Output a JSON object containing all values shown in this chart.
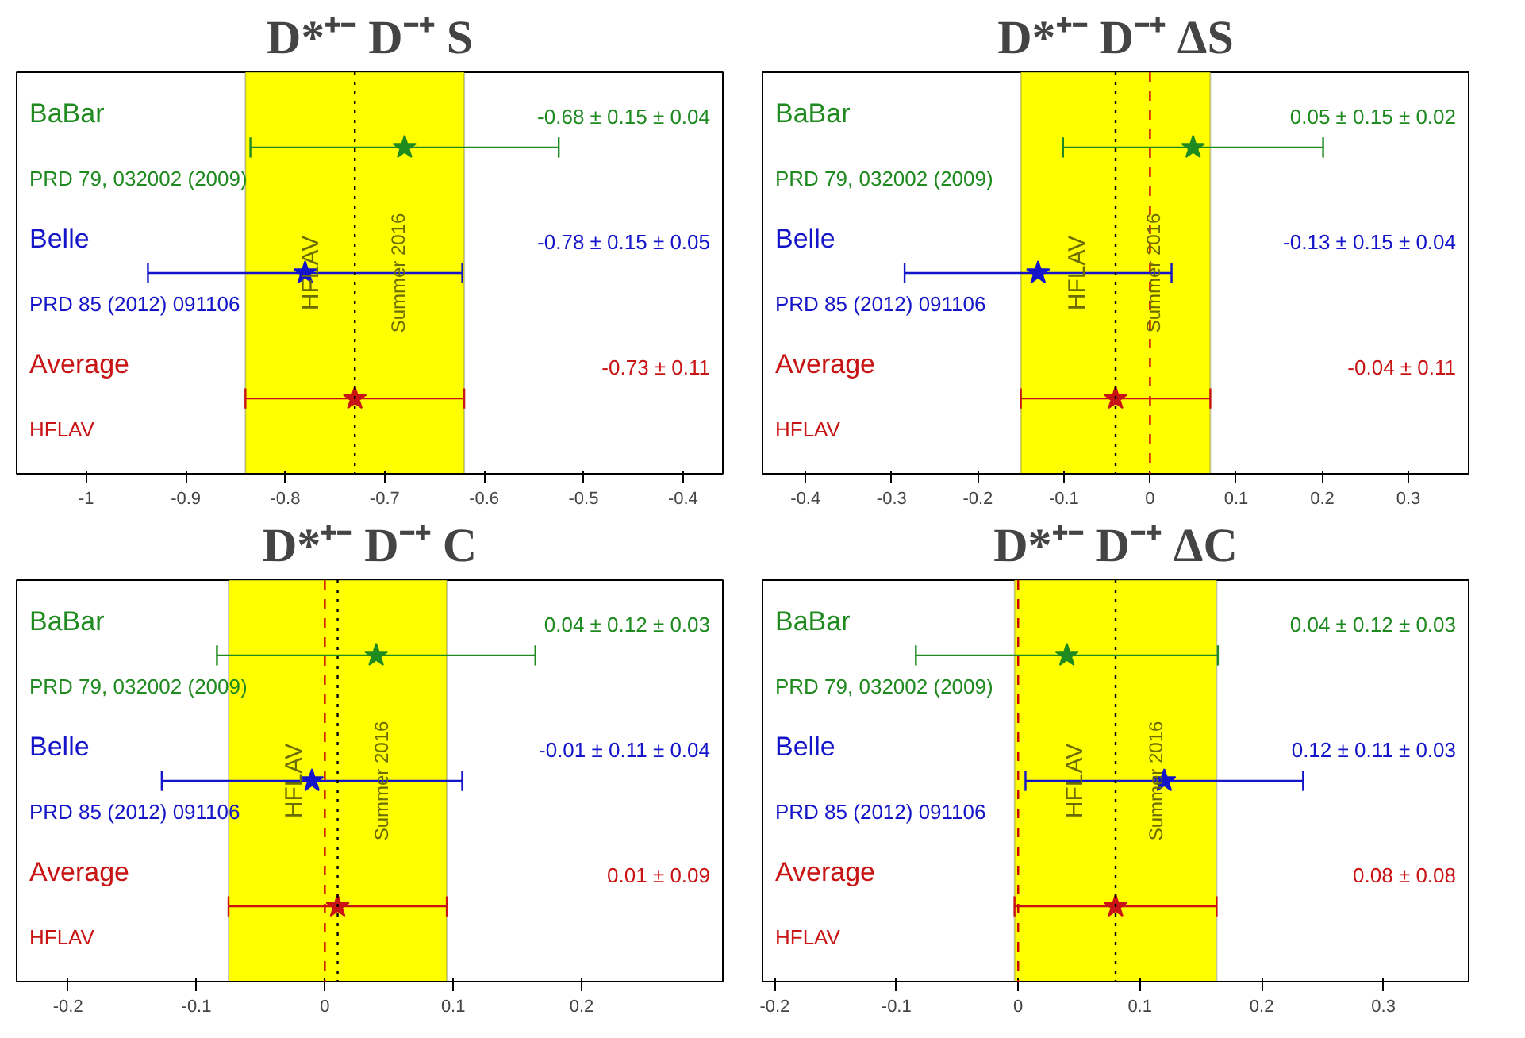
{
  "chart_data": [
    {
      "type": "scatter",
      "orientation": "horizontal",
      "title": "D*⁺⁻ D⁻⁺ S",
      "categories": [
        null,
        null,
        null
      ],
      "values": [
        -0.68,
        -0.78,
        -0.73
      ],
      "errors": [
        0.155,
        0.158,
        0.11
      ],
      "colors": [
        "#1f8a1f",
        "#1414c8",
        "#c81414"
      ],
      "marker": "star",
      "grid": false,
      "tick_labels": "x",
      "xlim": [
        -1.07,
        -0.36
      ],
      "xticks": [
        -1,
        -0.9,
        -0.8,
        -0.7,
        -0.6,
        -0.5,
        -0.4
      ],
      "bands": [
        {
          "axis": "x",
          "from": -0.84,
          "to": -0.62,
          "color": "#ffff00"
        }
      ],
      "ref_lines": [
        {
          "axis": "x",
          "value": -0.73,
          "color": "#000000",
          "line_style": "dotted"
        }
      ],
      "annotations": [
        "BaBar",
        "PRD 79, 032002 (2009)",
        "-0.68 ± 0.15 ± 0.04",
        "Belle",
        "PRD 85 (2012) 091106",
        "-0.78 ± 0.15 ± 0.05",
        "Average",
        "HFLAV",
        "-0.73 ± 0.11",
        "HFLAV",
        "Summer 2016"
      ]
    },
    {
      "type": "scatter",
      "orientation": "horizontal",
      "title": "D*⁺⁻ D⁻⁺ ΔS",
      "categories": [
        null,
        null,
        null
      ],
      "values": [
        0.05,
        -0.13,
        -0.04
      ],
      "errors": [
        0.151,
        0.155,
        0.11
      ],
      "colors": [
        "#1f8a1f",
        "#1414c8",
        "#c81414"
      ],
      "marker": "star",
      "grid": false,
      "tick_labels": "x",
      "xlim": [
        -0.45,
        0.37
      ],
      "xticks": [
        -0.4,
        -0.3,
        -0.2,
        -0.1,
        0,
        0.1,
        0.2,
        0.3
      ],
      "bands": [
        {
          "axis": "x",
          "from": -0.15,
          "to": 0.07,
          "color": "#ffff00"
        }
      ],
      "ref_lines": [
        {
          "axis": "x",
          "value": -0.04,
          "color": "#000000",
          "line_style": "dotted"
        },
        {
          "axis": "x",
          "value": 0,
          "color": "#cc0000",
          "line_style": "dashed"
        }
      ],
      "annotations": [
        "BaBar",
        "PRD 79, 032002 (2009)",
        "0.05 ± 0.15 ± 0.02",
        "Belle",
        "PRD 85 (2012) 091106",
        "-0.13 ± 0.15 ± 0.04",
        "Average",
        "HFLAV",
        "-0.04 ± 0.11",
        "HFLAV",
        "Summer 2016"
      ]
    },
    {
      "type": "scatter",
      "orientation": "horizontal",
      "title": "D*⁺⁻ D⁻⁺ C",
      "categories": [
        null,
        null,
        null
      ],
      "values": [
        0.04,
        -0.01,
        0.01
      ],
      "errors": [
        0.124,
        0.117,
        0.085
      ],
      "colors": [
        "#1f8a1f",
        "#1414c8",
        "#c81414"
      ],
      "marker": "star",
      "grid": false,
      "tick_labels": "x",
      "xlim": [
        -0.24,
        0.31
      ],
      "xticks": [
        -0.2,
        -0.1,
        0,
        0.1,
        0.2
      ],
      "bands": [
        {
          "axis": "x",
          "from": -0.075,
          "to": 0.095,
          "color": "#ffff00"
        }
      ],
      "ref_lines": [
        {
          "axis": "x",
          "value": 0.01,
          "color": "#000000",
          "line_style": "dotted"
        },
        {
          "axis": "x",
          "value": 0,
          "color": "#cc0000",
          "line_style": "dashed"
        }
      ],
      "annotations": [
        "BaBar",
        "PRD 79, 032002 (2009)",
        "0.04 ± 0.12 ± 0.03",
        "Belle",
        "PRD 85 (2012) 091106",
        "-0.01 ± 0.11 ± 0.04",
        "Average",
        "HFLAV",
        "0.01 ± 0.09",
        "HFLAV",
        "Summer 2016"
      ]
    },
    {
      "type": "scatter",
      "orientation": "horizontal",
      "title": "D*⁺⁻ D⁻⁺ ΔC",
      "categories": [
        null,
        null,
        null
      ],
      "values": [
        0.04,
        0.12,
        0.08
      ],
      "errors": [
        0.124,
        0.114,
        0.083
      ],
      "colors": [
        "#1f8a1f",
        "#1414c8",
        "#c81414"
      ],
      "marker": "star",
      "grid": false,
      "tick_labels": "x",
      "xlim": [
        -0.21,
        0.37
      ],
      "xticks": [
        -0.2,
        -0.1,
        0,
        0.1,
        0.2,
        0.3
      ],
      "bands": [
        {
          "axis": "x",
          "from": -0.003,
          "to": 0.163,
          "color": "#ffff00"
        }
      ],
      "ref_lines": [
        {
          "axis": "x",
          "value": 0.08,
          "color": "#000000",
          "line_style": "dotted"
        },
        {
          "axis": "x",
          "value": 0,
          "color": "#cc0000",
          "line_style": "dashed"
        }
      ],
      "annotations": [
        "BaBar",
        "PRD 79, 032002 (2009)",
        "0.04 ± 0.12 ± 0.03",
        "Belle",
        "PRD 85 (2012) 091106",
        "0.12 ± 0.11 ± 0.03",
        "Average",
        "HFLAV",
        "0.08 ± 0.08",
        "HFLAV",
        "Summer 2016"
      ]
    }
  ]
}
